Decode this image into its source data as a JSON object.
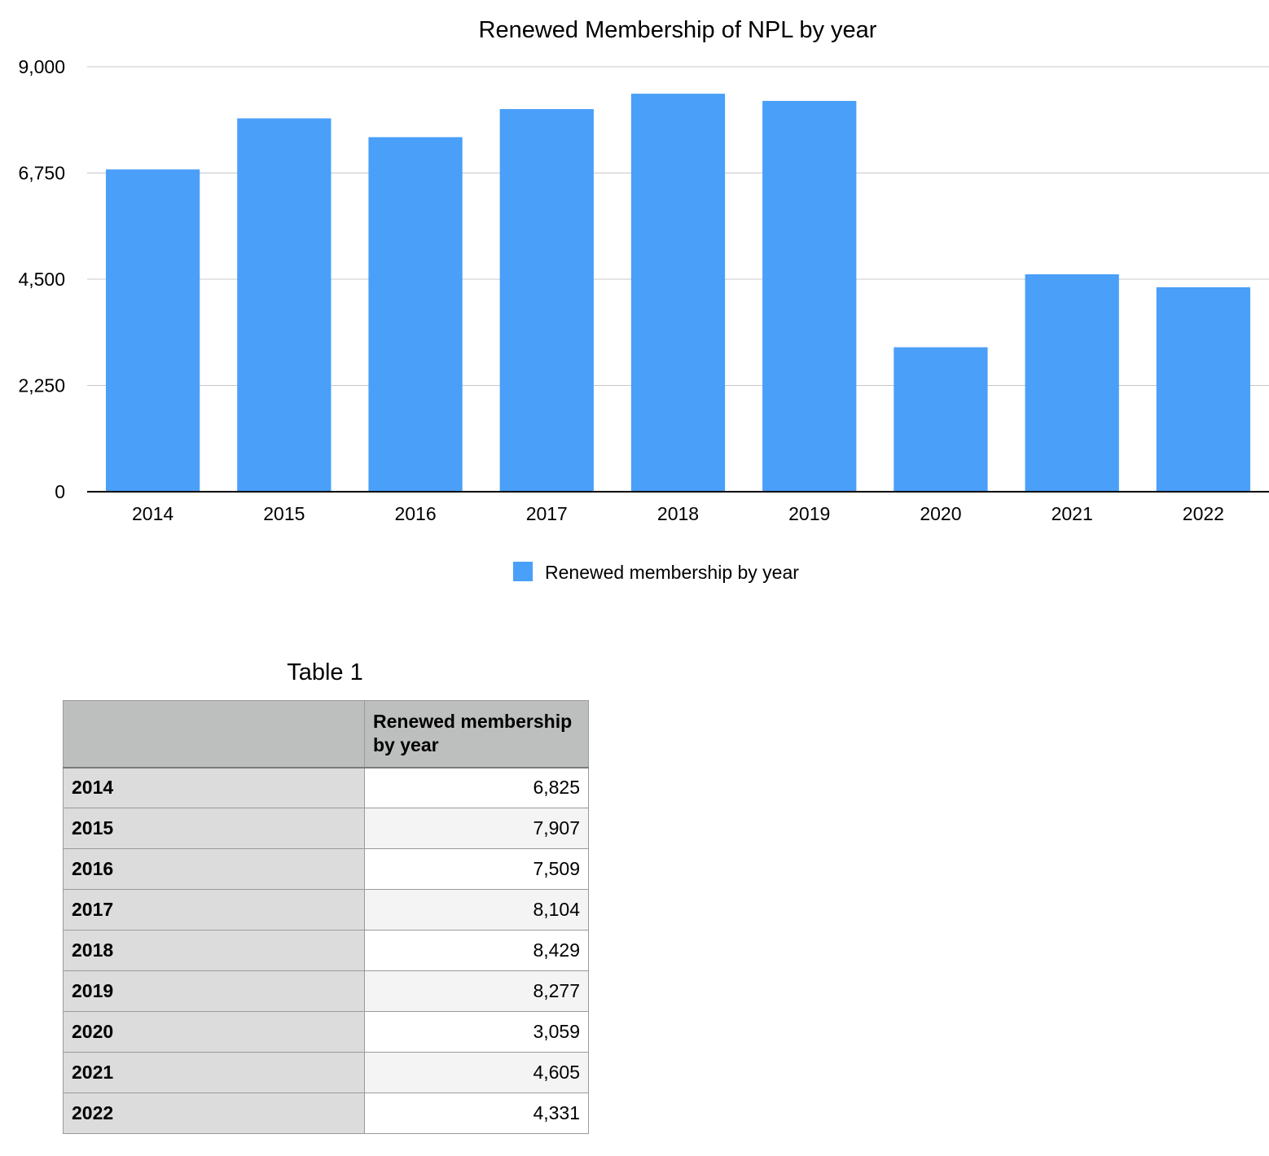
{
  "chart_data": {
    "type": "bar",
    "title": "Renewed Membership of NPL by year",
    "xlabel": "",
    "ylabel": "",
    "categories": [
      "2014",
      "2015",
      "2016",
      "2017",
      "2018",
      "2019",
      "2020",
      "2021",
      "2022"
    ],
    "series": [
      {
        "name": "Renewed membership by year",
        "values": [
          6825,
          7907,
          7509,
          8104,
          8429,
          8277,
          3059,
          4605,
          4331
        ],
        "color": "#4a9ff8"
      }
    ],
    "ylim": [
      0,
      9000
    ],
    "yticks": [
      0,
      2250,
      4500,
      6750,
      9000
    ],
    "ytick_labels": [
      "0",
      "2,250",
      "4,500",
      "6,750",
      "9,000"
    ],
    "grid": true,
    "legend_position": "bottom"
  },
  "table": {
    "title": "Table 1",
    "header": [
      "",
      "Renewed membership by year"
    ],
    "rows": [
      {
        "label": "2014",
        "value": "6,825"
      },
      {
        "label": "2015",
        "value": "7,907"
      },
      {
        "label": "2016",
        "value": "7,509"
      },
      {
        "label": "2017",
        "value": "8,104"
      },
      {
        "label": "2018",
        "value": "8,429"
      },
      {
        "label": "2019",
        "value": "8,277"
      },
      {
        "label": "2020",
        "value": "3,059"
      },
      {
        "label": "2021",
        "value": "4,605"
      },
      {
        "label": "2022",
        "value": "4,331"
      }
    ]
  }
}
